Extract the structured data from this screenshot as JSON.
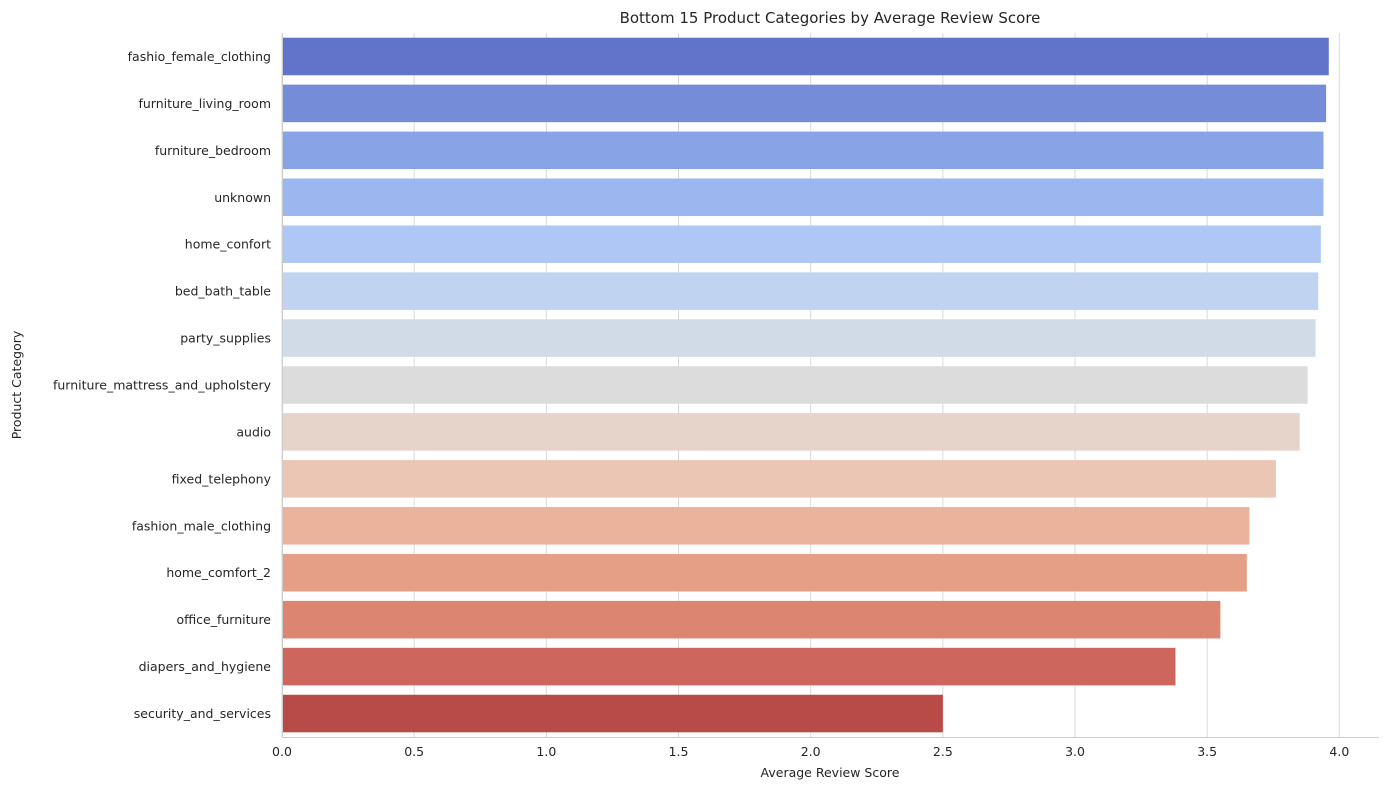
{
  "chart_data": {
    "type": "bar",
    "orientation": "horizontal",
    "title": "Bottom 15 Product Categories by Average Review Score",
    "xlabel": "Average Review Score",
    "ylabel": "Product Category",
    "xlim": [
      0,
      4.15
    ],
    "xticks": [
      "0.0",
      "0.5",
      "1.0",
      "1.5",
      "2.0",
      "2.5",
      "3.0",
      "3.5",
      "4.0"
    ],
    "grid": true,
    "categories": [
      "fashio_female_clothing",
      "furniture_living_room",
      "furniture_bedroom",
      "unknown",
      "home_confort",
      "bed_bath_table",
      "party_supplies",
      "furniture_mattress_and_upholstery",
      "audio",
      "fixed_telephony",
      "fashion_male_clothing",
      "home_comfort_2",
      "office_furniture",
      "diapers_and_hygiene",
      "security_and_services"
    ],
    "values": [
      3.96,
      3.95,
      3.94,
      3.94,
      3.93,
      3.92,
      3.91,
      3.88,
      3.85,
      3.76,
      3.66,
      3.65,
      3.55,
      3.38,
      2.5
    ],
    "colors": [
      "#6174c9",
      "#758dd9",
      "#88a3e6",
      "#9cb7f0",
      "#aec7f4",
      "#c0d3f0",
      "#d1dae7",
      "#dcdcdc",
      "#e6d3ca",
      "#ecc6b4",
      "#ecb39c",
      "#e59f87",
      "#dc8671",
      "#cd675e",
      "#b84b48"
    ]
  }
}
